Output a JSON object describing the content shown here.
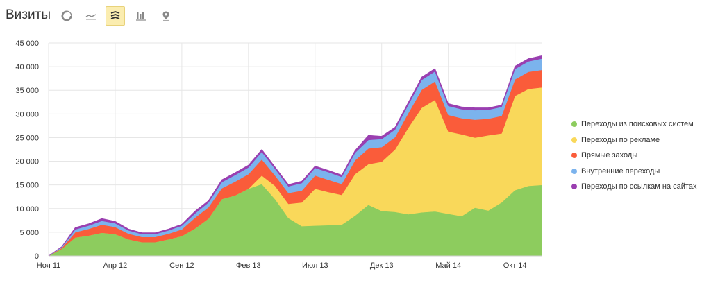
{
  "header": {
    "title": "Визиты",
    "tools": [
      {
        "name": "pie-chart-icon",
        "active": false
      },
      {
        "name": "line-chart-icon",
        "active": false
      },
      {
        "name": "stacked-area-icon",
        "active": true
      },
      {
        "name": "bar-chart-icon",
        "active": false
      },
      {
        "name": "map-pin-icon",
        "active": false
      }
    ]
  },
  "chart_data": {
    "type": "area",
    "stacked": true,
    "x": [
      "2011-11",
      "2011-12",
      "2012-01",
      "2012-02",
      "2012-03",
      "2012-04",
      "2012-05",
      "2012-06",
      "2012-07",
      "2012-08",
      "2012-09",
      "2012-10",
      "2012-11",
      "2012-12",
      "2013-01",
      "2013-02",
      "2013-03",
      "2013-04",
      "2013-05",
      "2013-06",
      "2013-07",
      "2013-08",
      "2013-09",
      "2013-10",
      "2013-11",
      "2013-12",
      "2014-01",
      "2014-02",
      "2014-03",
      "2014-04",
      "2014-05",
      "2014-06",
      "2014-07",
      "2014-08",
      "2014-09",
      "2014-10",
      "2014-11",
      "2014-12"
    ],
    "xticks": [
      {
        "value": "2011-11",
        "label": "Ноя 11"
      },
      {
        "value": "2012-04",
        "label": "Апр 12"
      },
      {
        "value": "2012-09",
        "label": "Сен 12"
      },
      {
        "value": "2013-02",
        "label": "Фев 13"
      },
      {
        "value": "2013-07",
        "label": "Июл 13"
      },
      {
        "value": "2013-12",
        "label": "Дек 13"
      },
      {
        "value": "2014-05",
        "label": "Май 14"
      },
      {
        "value": "2014-10",
        "label": "Окт 14"
      }
    ],
    "yticks": [
      {
        "value": 0,
        "label": "0"
      },
      {
        "value": 5000,
        "label": "5 000"
      },
      {
        "value": 10000,
        "label": "10 000"
      },
      {
        "value": 15000,
        "label": "15 000"
      },
      {
        "value": 20000,
        "label": "20 000"
      },
      {
        "value": 25000,
        "label": "25 000"
      },
      {
        "value": 30000,
        "label": "30 000"
      },
      {
        "value": 35000,
        "label": "35 000"
      },
      {
        "value": 40000,
        "label": "40 000"
      },
      {
        "value": 45000,
        "label": "45 000"
      }
    ],
    "ylim": [
      0,
      45000
    ],
    "grid": true,
    "legend_position": "right",
    "series": [
      {
        "name": "Переходы из поисковых систем",
        "color": "#8dcc5e",
        "values": [
          0,
          1500,
          3900,
          4300,
          4900,
          4600,
          3500,
          2900,
          2900,
          3500,
          4200,
          5800,
          7900,
          12000,
          12800,
          14200,
          15200,
          12000,
          8000,
          6300,
          6400,
          6500,
          6600,
          8500,
          10800,
          9500,
          9300,
          8800,
          9200,
          9400,
          8900,
          8400,
          10200,
          9600,
          11300,
          13900,
          14800,
          15000
        ]
      },
      {
        "name": "Переходы по рекламе",
        "color": "#f9d85a",
        "values": [
          0,
          0,
          0,
          0,
          0,
          0,
          0,
          0,
          0,
          0,
          0,
          0,
          0,
          0,
          0,
          0,
          1800,
          2800,
          3000,
          5000,
          7800,
          7000,
          6300,
          8800,
          8600,
          10400,
          13200,
          18300,
          22100,
          23600,
          17400,
          17300,
          14800,
          15900,
          14600,
          19900,
          20500,
          20600
        ]
      },
      {
        "name": "Прямые заходы",
        "color": "#fa5c3a",
        "values": [
          0,
          200,
          1100,
          1400,
          1700,
          1500,
          1200,
          1100,
          1100,
          1200,
          1400,
          2300,
          2400,
          2300,
          2900,
          3100,
          3400,
          2200,
          2300,
          2500,
          2800,
          2600,
          2300,
          2900,
          3300,
          3100,
          2600,
          3100,
          3800,
          3900,
          3500,
          3400,
          3800,
          3500,
          3700,
          3500,
          3600,
          3700
        ]
      },
      {
        "name": "Внутренние переходы",
        "color": "#7bb3ed",
        "values": [
          0,
          200,
          600,
          700,
          800,
          800,
          700,
          600,
          600,
          700,
          800,
          900,
          1000,
          1300,
          1400,
          1400,
          1600,
          1400,
          1400,
          1600,
          1600,
          1600,
          1500,
          1600,
          1800,
          1700,
          1600,
          1800,
          2100,
          2100,
          1900,
          1900,
          2000,
          1900,
          1900,
          2200,
          2200,
          2400
        ]
      },
      {
        "name": "Переходы по ссылкам на сайтах",
        "color": "#9a3fb0",
        "values": [
          0,
          100,
          400,
          400,
          500,
          400,
          300,
          300,
          300,
          300,
          300,
          500,
          400,
          500,
          500,
          500,
          500,
          400,
          400,
          400,
          400,
          400,
          400,
          500,
          1000,
          600,
          500,
          500,
          600,
          600,
          500,
          500,
          500,
          400,
          400,
          600,
          600,
          600
        ]
      }
    ]
  }
}
